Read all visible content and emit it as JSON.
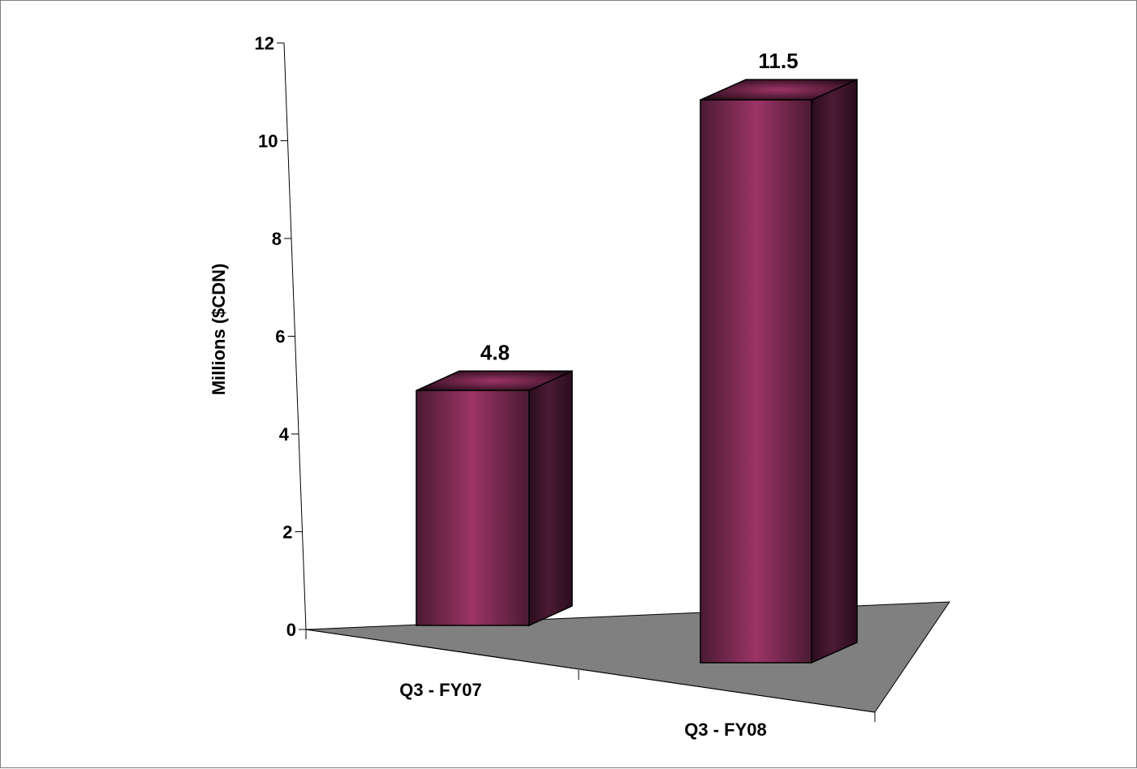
{
  "chart_data": {
    "type": "bar",
    "style": "3d-column",
    "categories": [
      "Q3 - FY07",
      "Q3 - FY08"
    ],
    "values": [
      4.8,
      11.5
    ],
    "data_labels": [
      "4.8",
      "11.5"
    ],
    "ylabel": "Millions ($CDN)",
    "xlabel": "",
    "title": "",
    "ylim": [
      0,
      12
    ],
    "yticks": [
      0,
      2,
      4,
      6,
      8,
      10,
      12
    ],
    "grid": false,
    "legend": "none"
  },
  "colors": {
    "bar_front_edge": "#4a1a33",
    "bar_front_center": "#9c3466",
    "bar_side_dark": "#2a0d1c",
    "bar_side_light": "#4c1b35",
    "floor": "#808080",
    "background": "#ffffff",
    "frame": "#7f7f7f"
  }
}
